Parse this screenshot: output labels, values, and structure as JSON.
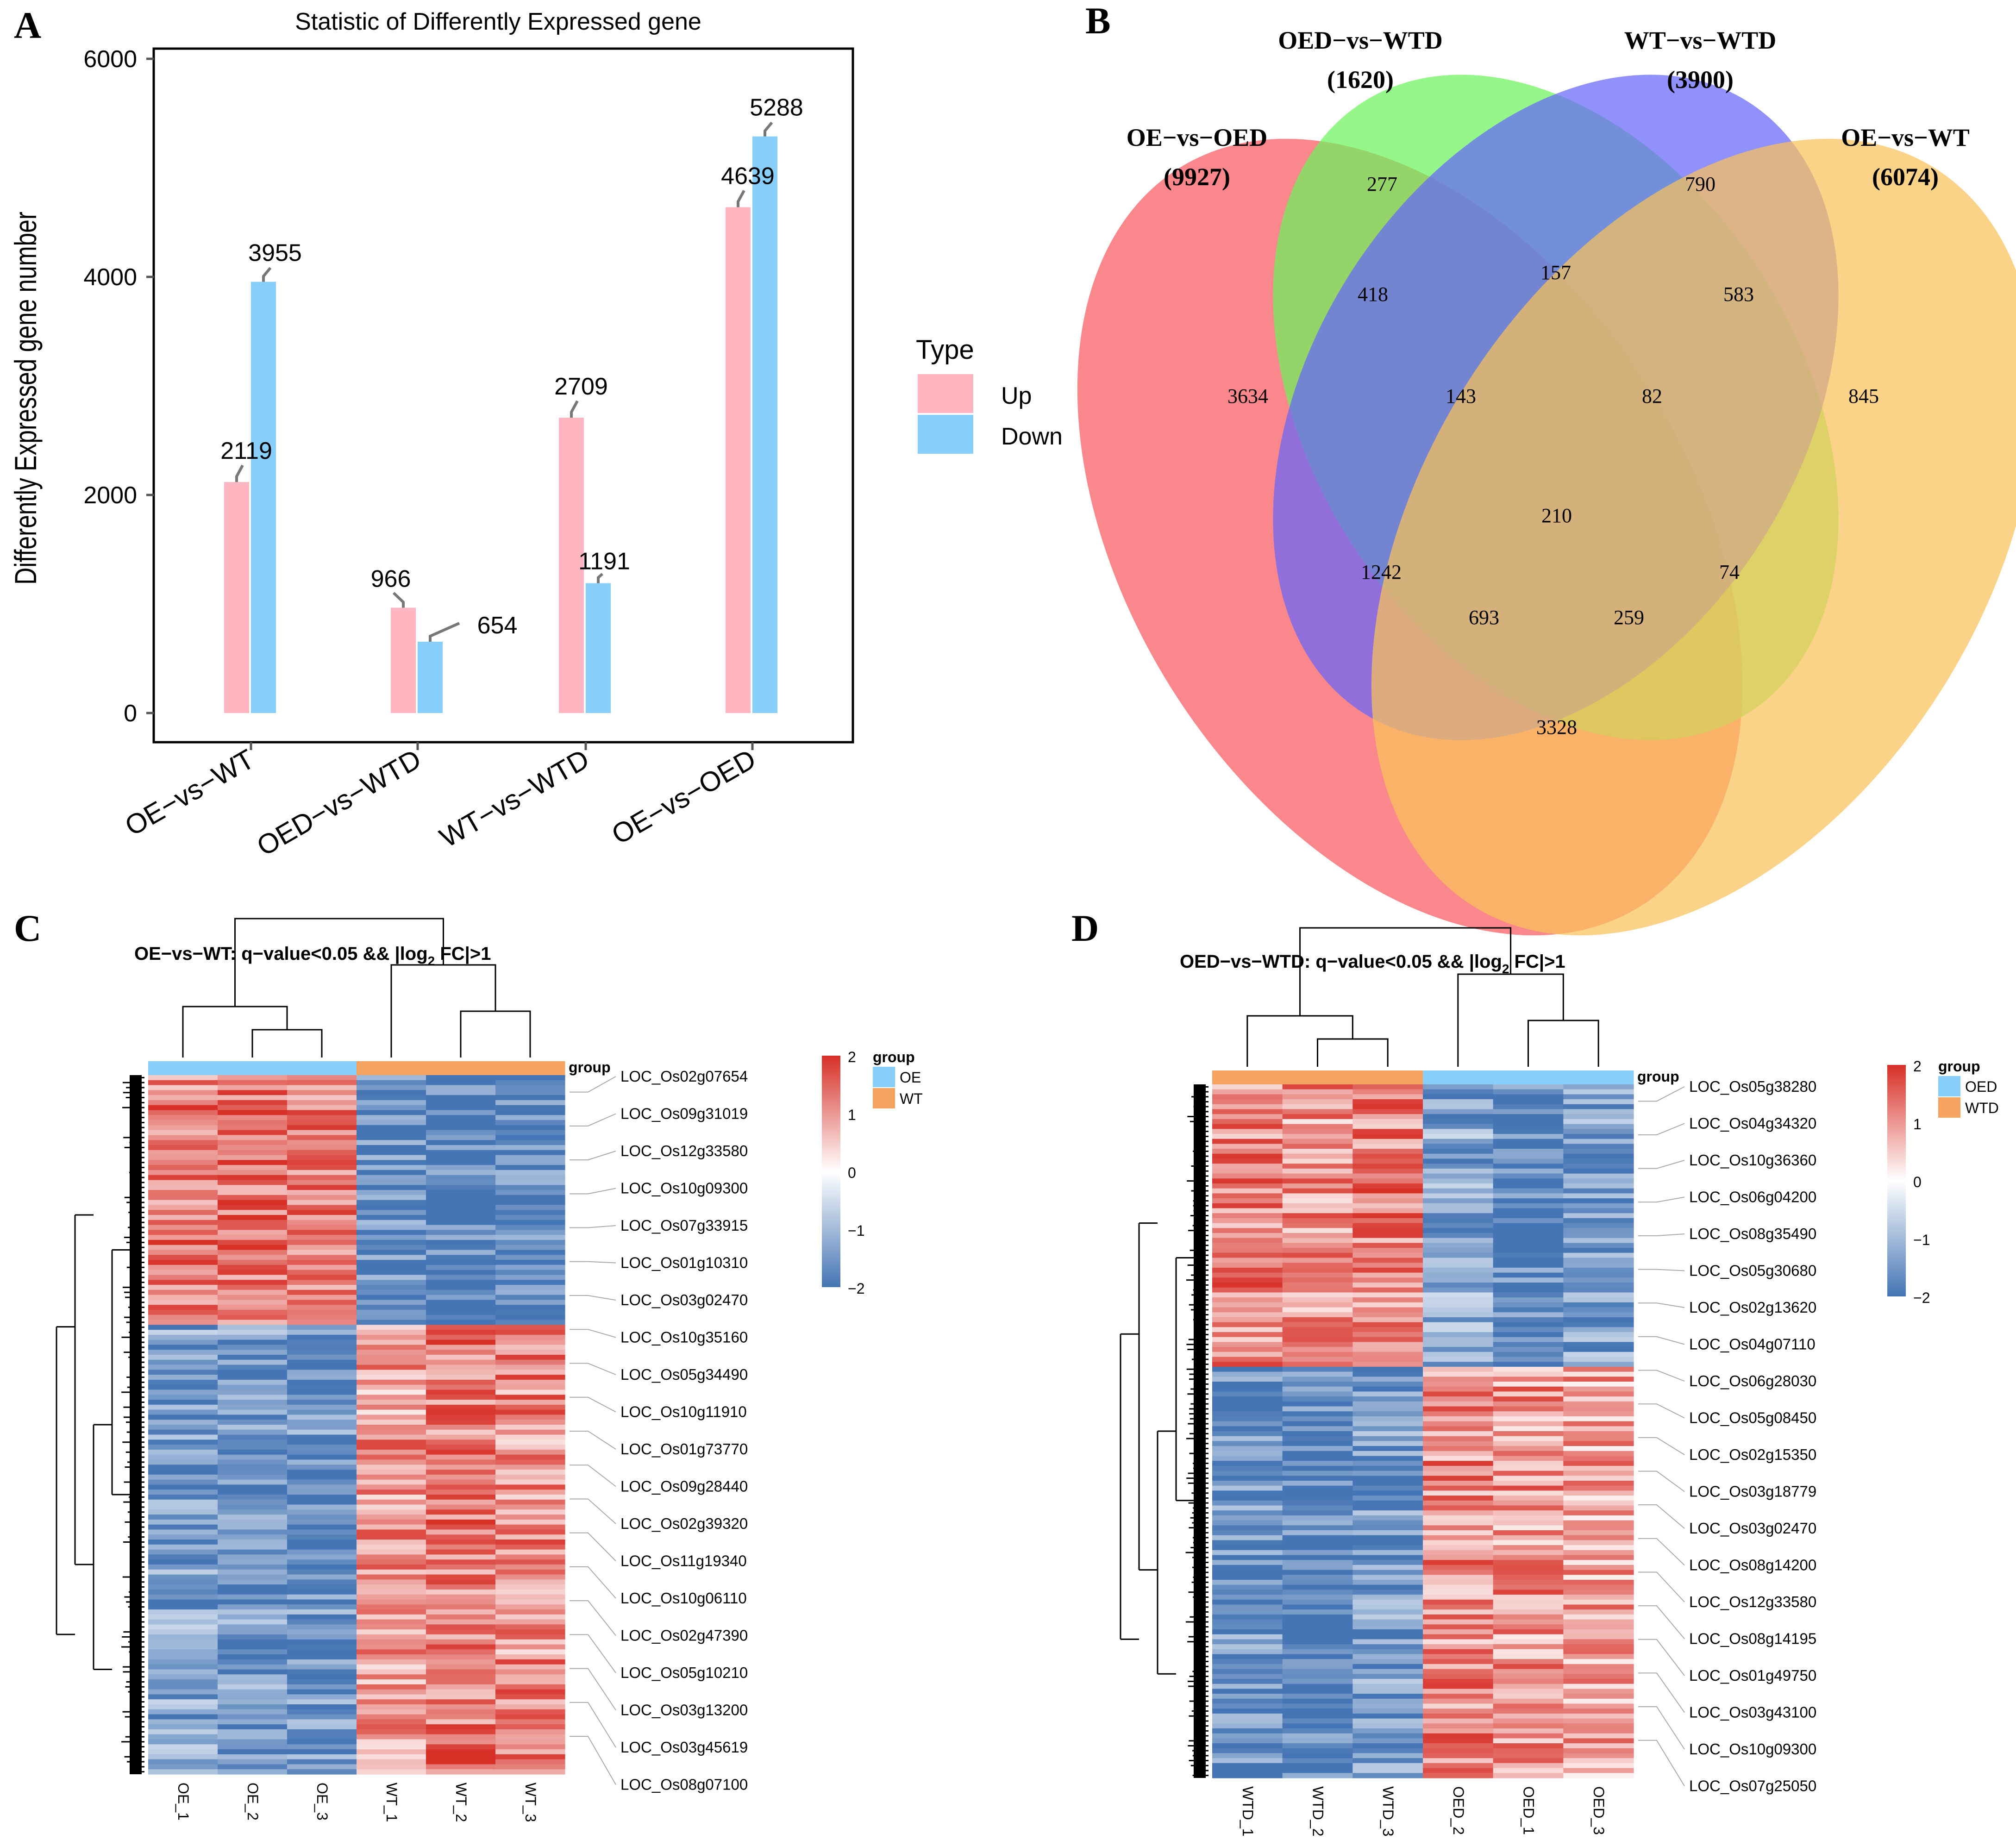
{
  "panel_labels": [
    "A",
    "B",
    "C",
    "D"
  ],
  "colors": {
    "up": "#FFB6C1",
    "down": "#87CEFA",
    "venn_red": "#F8595E",
    "venn_green": "#6CF25C",
    "venn_blue": "#6666F9",
    "venn_yellow": "#F9C25A",
    "hm_high": "#D73027",
    "hm_mid": "#FFFFFF",
    "hm_low": "#4575B4",
    "group_oe": "#87CEFA",
    "group_wt": "#F4A460"
  },
  "chart_data": [
    {
      "type": "bar",
      "title": "Statistic of Differently Expressed gene",
      "xlabel": "",
      "ylabel": "Differently Expressed gene number",
      "categories": [
        "OE−vs−WT",
        "OED−vs−WTD",
        "WT−vs−WTD",
        "OE−vs−OED"
      ],
      "series": [
        {
          "name": "Up",
          "values": [
            2119,
            966,
            2709,
            4639
          ]
        },
        {
          "name": "Down",
          "values": [
            3955,
            654,
            1191,
            5288
          ]
        }
      ],
      "value_labels": {
        "Up": [
          "2119",
          "966",
          "2709",
          "4639"
        ],
        "Down": [
          "3955",
          "654",
          "1191",
          "5288"
        ]
      },
      "ylim": [
        0,
        6000
      ],
      "yticks": [
        0,
        2000,
        4000,
        6000
      ],
      "ytick_labels": [
        "0",
        "2000",
        "4000",
        "6000"
      ],
      "legend": {
        "title": "Type",
        "entries": [
          "Up",
          "Down"
        ],
        "placement": "right"
      }
    },
    {
      "type": "venn",
      "sets": [
        {
          "name": "OE−vs−OED",
          "count": "(9927)"
        },
        {
          "name": "OED−vs−WTD",
          "count": "(1620)"
        },
        {
          "name": "WT−vs−WTD",
          "count": "(3900)"
        },
        {
          "name": "OE−vs−WT",
          "count": "(6074)"
        }
      ],
      "regions": [
        {
          "sets": [
            "OE−vs−OED"
          ],
          "value": 3634
        },
        {
          "sets": [
            "OED−vs−WTD"
          ],
          "value": 277
        },
        {
          "sets": [
            "WT−vs−WTD"
          ],
          "value": 790
        },
        {
          "sets": [
            "OE−vs−WT"
          ],
          "value": 845
        },
        {
          "sets": [
            "OE−vs−OED",
            "OED−vs−WTD"
          ],
          "value": 418
        },
        {
          "sets": [
            "OED−vs−WTD",
            "WT−vs−WTD"
          ],
          "value": 157
        },
        {
          "sets": [
            "WT−vs−WTD",
            "OE−vs−WT"
          ],
          "value": 583
        },
        {
          "sets": [
            "OE−vs−OED",
            "OED−vs−WTD",
            "WT−vs−WTD"
          ],
          "value": 143
        },
        {
          "sets": [
            "OED−vs−WTD",
            "WT−vs−WTD",
            "OE−vs−WT"
          ],
          "value": 82
        },
        {
          "sets": [
            "OE−vs−OED",
            "OED−vs−WTD",
            "WT−vs−WTD",
            "OE−vs−WT"
          ],
          "value": 210
        },
        {
          "sets": [
            "OE−vs−OED",
            "WT−vs−WTD"
          ],
          "value": 1242
        },
        {
          "sets": [
            "OED−vs−WTD",
            "OE−vs−WT"
          ],
          "value": 74
        },
        {
          "sets": [
            "OE−vs−OED",
            "WT−vs−WTD",
            "OE−vs−WT"
          ],
          "value": 693
        },
        {
          "sets": [
            "OE−vs−OED",
            "OED−vs−WTD",
            "OE−vs−WT"
          ],
          "value": 259
        },
        {
          "sets": [
            "OE−vs−OED",
            "OE−vs−WT"
          ],
          "value": 3328
        }
      ]
    },
    {
      "type": "heatmap",
      "title": "OE−vs−WT: q−value<0.05 && |log",
      "title_sub": "2",
      "title_tail": " FC|>1",
      "columns": [
        "OE_1",
        "OE_2",
        "OE_3",
        "WT_1",
        "WT_2",
        "WT_3"
      ],
      "column_groups": [
        "OE",
        "OE",
        "OE",
        "WT",
        "WT",
        "WT"
      ],
      "group_label": "group",
      "legend_groups": [
        "OE",
        "WT"
      ],
      "scale_ticks": [
        "2",
        "1",
        "0",
        "−1",
        "−2"
      ],
      "blocks": [
        {
          "share": 0.356,
          "levels": [
            1.3,
            1.4,
            1.3,
            -1.7,
            -1.8,
            -1.8
          ]
        },
        {
          "share": 0.644,
          "levels": [
            -1.4,
            -1.5,
            -1.6,
            1.0,
            1.3,
            1.1
          ]
        }
      ],
      "genes": [
        "LOC_Os02g07654",
        "LOC_Os09g31019",
        "LOC_Os12g33580",
        "LOC_Os10g09300",
        "LOC_Os07g33915",
        "LOC_Os01g10310",
        "LOC_Os03g02470",
        "LOC_Os10g35160",
        "LOC_Os05g34490",
        "LOC_Os10g11910",
        "LOC_Os01g73770",
        "LOC_Os09g28440",
        "LOC_Os02g39320",
        "LOC_Os11g19340",
        "LOC_Os10g06110",
        "LOC_Os02g47390",
        "LOC_Os05g10210",
        "LOC_Os03g13200",
        "LOC_Os03g45619",
        "LOC_Os08g07100"
      ]
    },
    {
      "type": "heatmap",
      "title": "OED−vs−WTD: q−value<0.05 && |log",
      "title_sub": "2",
      "title_tail": " FC|>1",
      "columns": [
        "WTD_1",
        "WTD_2",
        "WTD_3",
        "OED_2",
        "OED_1",
        "OED_3"
      ],
      "column_groups": [
        "WTD",
        "WTD",
        "WTD",
        "OED",
        "OED",
        "OED"
      ],
      "group_label": "group",
      "legend_groups": [
        "OED",
        "WTD"
      ],
      "scale_ticks": [
        "2",
        "1",
        "0",
        "−1",
        "−2"
      ],
      "blocks": [
        {
          "share": 0.404,
          "levels": [
            1.2,
            1.0,
            1.2,
            -1.3,
            -1.8,
            -1.4
          ]
        },
        {
          "share": 0.596,
          "levels": [
            -1.6,
            -1.8,
            -1.5,
            1.1,
            1.0,
            0.9
          ]
        }
      ],
      "genes": [
        "LOC_Os05g38280",
        "LOC_Os04g34320",
        "LOC_Os10g36360",
        "LOC_Os06g04200",
        "LOC_Os08g35490",
        "LOC_Os05g30680",
        "LOC_Os02g13620",
        "LOC_Os04g07110",
        "LOC_Os06g28030",
        "LOC_Os05g08450",
        "LOC_Os02g15350",
        "LOC_Os03g18779",
        "LOC_Os03g02470",
        "LOC_Os08g14200",
        "LOC_Os12g33580",
        "LOC_Os08g14195",
        "LOC_Os01g49750",
        "LOC_Os03g43100",
        "LOC_Os10g09300",
        "LOC_Os07g25050"
      ]
    }
  ]
}
